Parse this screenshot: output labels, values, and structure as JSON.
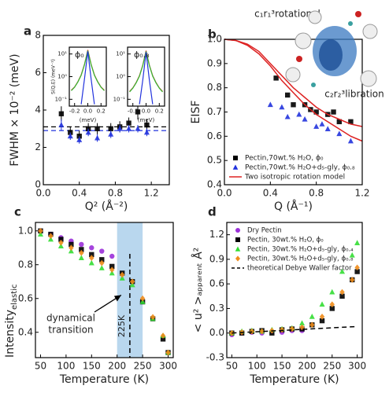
{
  "chart_data": [
    {
      "type": "scatter",
      "title": "a",
      "x_label": "Q² (Å⁻²)",
      "y_label": "FWHM × 10⁻² (meV)",
      "xlim": [
        0,
        1.4
      ],
      "xticks": [
        {
          "value": 0,
          "label": "0.0"
        },
        0.4,
        0.8,
        1.2
      ],
      "ylim": [
        0,
        8
      ],
      "yticks": [
        0,
        2,
        4,
        6,
        8
      ],
      "hlines": [
        {
          "value": 3.1,
          "color": "#000000"
        },
        {
          "value": 2.9,
          "color": "#2233dd"
        }
      ],
      "series": [
        {
          "marker": "square",
          "color": "#000000",
          "x": [
            0.2,
            0.3,
            0.4,
            0.5,
            0.6,
            0.75,
            0.85,
            0.95,
            1.05,
            1.15
          ],
          "values": [
            3.8,
            2.8,
            2.6,
            3.0,
            3.0,
            3.0,
            3.1,
            3.3,
            3.9,
            3.2
          ],
          "errors": [
            0.4,
            0.3,
            0.3,
            0.3,
            0.3,
            0.3,
            0.3,
            0.3,
            0.4,
            0.3
          ]
        },
        {
          "marker": "triangle",
          "color": "#2233dd",
          "x": [
            0.2,
            0.3,
            0.4,
            0.5,
            0.6,
            0.75,
            0.85,
            0.95,
            1.05,
            1.15
          ],
          "values": [
            3.2,
            2.6,
            2.4,
            2.8,
            2.5,
            2.7,
            3.0,
            3.0,
            3.0,
            2.8
          ],
          "errors": [
            0.3,
            0.2,
            0.2,
            0.2,
            0.2,
            0.2,
            0.2,
            0.2,
            0.2,
            0.2
          ]
        }
      ]
    },
    {
      "type": "line",
      "title": "ϕ₀",
      "x_label": "(meV)",
      "y_label": "S(Q,E) (meV⁻¹)",
      "log_y": true,
      "xlim": [
        -0.28,
        0.28
      ],
      "xticks": [
        -0.2,
        {
          "value": 0,
          "label": "0.0"
        },
        0.2
      ],
      "ylim": [
        0.05,
        20
      ],
      "yticks": [
        {
          "value": 0.1,
          "label": "10⁻¹"
        },
        {
          "value": 1,
          "label": "10⁰"
        },
        {
          "value": 10,
          "label": "10¹"
        }
      ],
      "series": [
        {
          "color": "#dd2222",
          "x": [
            -0.25,
            -0.2,
            -0.15,
            -0.1,
            -0.05,
            0,
            0.05,
            0.1,
            0.15,
            0.2,
            0.25
          ],
          "values": [
            0.25,
            0.35,
            0.6,
            1.2,
            3.5,
            15,
            3.5,
            1.2,
            0.6,
            0.35,
            0.25
          ]
        },
        {
          "color": "#33bb33",
          "x": [
            -0.25,
            -0.2,
            -0.15,
            -0.1,
            -0.05,
            0,
            0.05,
            0.1,
            0.15,
            0.2,
            0.25
          ],
          "values": [
            0.24,
            0.34,
            0.58,
            1.15,
            3.4,
            14,
            3.4,
            1.15,
            0.58,
            0.34,
            0.24
          ]
        },
        {
          "color": "#2233dd",
          "x": [
            -0.25,
            -0.2,
            -0.15,
            -0.1,
            -0.05,
            0,
            0.05,
            0.1,
            0.15,
            0.2,
            0.25
          ],
          "values": [
            null,
            null,
            null,
            0.06,
            0.8,
            13,
            0.8,
            0.06,
            null,
            null,
            null
          ]
        }
      ]
    },
    {
      "type": "line",
      "title": "ϕ₀.₈",
      "x_label": "(meV)",
      "log_y": true,
      "xlim": [
        -0.28,
        0.28
      ],
      "xticks": [
        -0.2,
        {
          "value": 0,
          "label": "0.0"
        },
        0.2
      ],
      "ylim": [
        0.05,
        20
      ],
      "yticks": [
        {
          "value": 0.1,
          "label": "10⁻¹"
        },
        {
          "value": 1,
          "label": "10⁰"
        },
        {
          "value": 10,
          "label": "10¹"
        }
      ],
      "series": [
        {
          "color": "#dd2222",
          "x": [
            -0.25,
            -0.2,
            -0.15,
            -0.1,
            -0.05,
            0,
            0.05,
            0.1,
            0.15,
            0.2,
            0.25
          ],
          "values": [
            0.22,
            0.32,
            0.55,
            1.1,
            3.2,
            14,
            3.2,
            1.1,
            0.55,
            0.32,
            0.22
          ]
        },
        {
          "color": "#33bb33",
          "x": [
            -0.25,
            -0.2,
            -0.15,
            -0.1,
            -0.05,
            0,
            0.05,
            0.1,
            0.15,
            0.2,
            0.25
          ],
          "values": [
            0.21,
            0.31,
            0.53,
            1.05,
            3.1,
            13,
            3.1,
            1.05,
            0.53,
            0.31,
            0.21
          ]
        },
        {
          "color": "#2233dd",
          "x": [
            -0.25,
            -0.2,
            -0.15,
            -0.1,
            -0.05,
            0,
            0.05,
            0.1,
            0.15,
            0.2,
            0.25
          ],
          "values": [
            null,
            null,
            null,
            0.06,
            0.7,
            12,
            0.7,
            0.06,
            null,
            null,
            null
          ]
        }
      ]
    },
    {
      "type": "scatter",
      "title": "b",
      "x_label": "Q (Å⁻¹)",
      "y_label": "EISF",
      "legend": "lower left",
      "xlim": [
        0,
        1.2
      ],
      "xticks": [
        {
          "value": 0,
          "label": "0.0"
        },
        0.4,
        0.8,
        1.2
      ],
      "ylim": [
        0.4,
        1.0
      ],
      "yticks": [
        0.4,
        0.5,
        0.6,
        0.7,
        0.8,
        0.9,
        {
          "value": 1,
          "label": "1.0"
        }
      ],
      "annotations": [
        {
          "text": "c₁r₁³rotational",
          "color": "#dd2222"
        },
        {
          "text": "c₂r₂³libration",
          "color": "#3388cc"
        }
      ],
      "series": [
        {
          "name": "Pectin,70wt.% H₂O, ϕ₀",
          "marker": "square",
          "color": "#000000",
          "x": [
            0.45,
            0.55,
            0.6,
            0.7,
            0.75,
            0.8,
            0.9,
            0.95,
            1.0,
            1.1
          ],
          "values": [
            0.84,
            0.77,
            0.73,
            0.73,
            0.71,
            0.7,
            0.69,
            0.7,
            0.66,
            0.66
          ]
        },
        {
          "name": "Pectin,70wt.% H₂O+d₅-gly, ϕ₀.₈",
          "marker": "triangle",
          "color": "#2233dd",
          "x": [
            0.4,
            0.5,
            0.55,
            0.65,
            0.7,
            0.8,
            0.85,
            0.9,
            1.0,
            1.1
          ],
          "values": [
            0.73,
            0.72,
            0.68,
            0.69,
            0.67,
            0.64,
            0.65,
            0.63,
            0.61,
            0.58
          ]
        },
        {
          "name": "Two isotropic rotation model",
          "marker": "line",
          "color": "#dd2222",
          "x": [
            0,
            0.1,
            0.2,
            0.3,
            0.4,
            0.5,
            0.6,
            0.7,
            0.8,
            0.9,
            1.0,
            1.1,
            1.2
          ],
          "values": [
            1.0,
            0.995,
            0.98,
            0.95,
            0.9,
            0.85,
            0.8,
            0.76,
            0.72,
            0.69,
            0.67,
            0.65,
            0.64
          ]
        },
        {
          "marker": "line",
          "color": "#dd2222",
          "x": [
            0,
            0.1,
            0.2,
            0.3,
            0.4,
            0.5,
            0.6,
            0.7,
            0.8,
            0.9,
            1.0,
            1.1,
            1.2
          ],
          "values": [
            1.0,
            0.995,
            0.975,
            0.94,
            0.89,
            0.83,
            0.78,
            0.73,
            0.69,
            0.66,
            0.63,
            0.6,
            0.58
          ]
        }
      ]
    },
    {
      "type": "scatter",
      "title": "c",
      "x_label": "Temperature (K)",
      "y_label": "Intensity",
      "y_label_sub": "elastic",
      "xlim": [
        40,
        310
      ],
      "xticks": [
        50,
        100,
        150,
        200,
        250,
        300
      ],
      "ylim": [
        0.25,
        1.05
      ],
      "yticks": [
        0.4,
        0.6,
        0.8,
        {
          "value": 1,
          "label": "1.0"
        }
      ],
      "band": [
        200,
        250
      ],
      "band_color": "#b9d7ee",
      "vline": {
        "value": 225,
        "label": "225K"
      },
      "annotation": [
        "dynamical",
        "transition"
      ],
      "series": [
        {
          "marker": "circle",
          "color": "#9b30d9",
          "x": [
            50,
            70,
            90,
            110,
            130,
            150,
            170,
            190
          ],
          "values": [
            1.0,
            0.98,
            0.96,
            0.94,
            0.92,
            0.9,
            0.88,
            0.85
          ]
        },
        {
          "marker": "square",
          "color": "#000000",
          "x": [
            50,
            70,
            90,
            110,
            130,
            150,
            170,
            190,
            210,
            230,
            250,
            270,
            290,
            300
          ],
          "values": [
            1.0,
            0.98,
            0.95,
            0.92,
            0.89,
            0.86,
            0.83,
            0.79,
            0.75,
            0.7,
            0.58,
            0.48,
            0.36,
            0.28
          ]
        },
        {
          "marker": "triangle",
          "color": "#33dd33",
          "x": [
            50,
            70,
            90,
            110,
            130,
            150,
            170,
            190,
            210,
            230,
            250,
            270,
            290,
            300
          ],
          "values": [
            0.98,
            0.95,
            0.91,
            0.88,
            0.84,
            0.81,
            0.78,
            0.75,
            0.72,
            0.68,
            0.58,
            0.48,
            0.38,
            0.28
          ]
        },
        {
          "marker": "diamond",
          "color": "#f08c1a",
          "x": [
            50,
            70,
            90,
            110,
            130,
            150,
            170,
            190,
            210,
            230,
            250,
            270,
            290,
            300
          ],
          "values": [
            1.0,
            0.97,
            0.93,
            0.9,
            0.87,
            0.84,
            0.81,
            0.77,
            0.74,
            0.7,
            0.6,
            0.49,
            0.38,
            0.28
          ]
        }
      ]
    },
    {
      "type": "scatter",
      "title": "d",
      "x_label": "Temperature (K)",
      "y_label": "< u² >ₐₚₚₐᵣₑₙₜ Å²",
      "legend": "upper left",
      "xlim": [
        40,
        310
      ],
      "xticks": [
        50,
        100,
        150,
        200,
        250,
        300
      ],
      "ylim": [
        -0.3,
        1.35
      ],
      "yticks": [
        -0.3,
        {
          "value": 0,
          "label": "0.0"
        },
        0.3,
        0.6,
        0.9,
        1.2
      ],
      "series": [
        {
          "name": "Dry Pectin",
          "marker": "circle",
          "color": "#9b30d9",
          "x": [
            50,
            70,
            90,
            110,
            130,
            150,
            170,
            190
          ],
          "values": [
            -0.02,
            0.0,
            0.01,
            0.0,
            0.02,
            0.01,
            0.03,
            0.03
          ]
        },
        {
          "name": "Pectin, 30wt.% H₂O, ϕ₀",
          "marker": "square",
          "color": "#000000",
          "x": [
            50,
            70,
            90,
            110,
            130,
            150,
            170,
            190,
            210,
            230,
            250,
            270,
            290,
            300
          ],
          "values": [
            0.0,
            0.0,
            0.02,
            0.03,
            0.0,
            0.04,
            0.05,
            0.05,
            0.1,
            0.15,
            0.3,
            0.45,
            0.65,
            0.75
          ]
        },
        {
          "name": "Pectin, 30wt.% H₂O+d₅-gly, ϕ₀.₄",
          "marker": "triangle",
          "color": "#33dd33",
          "x": [
            50,
            70,
            90,
            110,
            130,
            150,
            170,
            190,
            210,
            230,
            250,
            270,
            290,
            300
          ],
          "values": [
            0.0,
            0.02,
            0.03,
            0.02,
            0.04,
            0.05,
            0.06,
            0.12,
            0.2,
            0.35,
            0.5,
            0.75,
            0.95,
            1.1
          ]
        },
        {
          "name": "Pectin, 30wt.% H₂O+d₅-gly, ϕ₀.₈",
          "marker": "diamond",
          "color": "#f08c1a",
          "x": [
            50,
            70,
            90,
            110,
            130,
            150,
            170,
            190,
            210,
            230,
            250,
            270,
            290,
            300
          ],
          "values": [
            0.0,
            0.01,
            0.02,
            0.02,
            0.03,
            0.04,
            0.05,
            0.07,
            0.1,
            0.2,
            0.35,
            0.5,
            0.65,
            0.8
          ]
        },
        {
          "name": "theoretical Debye Waller factor",
          "marker": "dashed",
          "color": "#000000",
          "x": [
            50,
            300
          ],
          "values": [
            0.0,
            0.08
          ]
        }
      ]
    }
  ]
}
